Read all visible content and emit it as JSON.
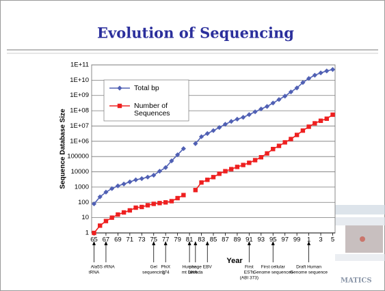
{
  "chart_data": {
    "type": "line",
    "title": "Evolution of Sequencing",
    "ylabel": "Sequence Database Size",
    "xlabel": "Year",
    "watermark": "MATICS",
    "log_y": true,
    "grid": true,
    "legend": "upper left",
    "xlim": [
      1964.6,
      2005.4
    ],
    "ylim": [
      1,
      100000000000
    ],
    "xticks": [
      {
        "value": 1965,
        "label": "65"
      },
      {
        "value": 1967,
        "label": "67"
      },
      {
        "value": 1969,
        "label": "69"
      },
      {
        "value": 1971,
        "label": "71"
      },
      {
        "value": 1973,
        "label": "73"
      },
      {
        "value": 1975,
        "label": "75"
      },
      {
        "value": 1977,
        "label": "77"
      },
      {
        "value": 1979,
        "label": "79"
      },
      {
        "value": 1981,
        "label": "81"
      },
      {
        "value": 1983,
        "label": "83"
      },
      {
        "value": 1985,
        "label": "85"
      },
      {
        "value": 1987,
        "label": "87"
      },
      {
        "value": 1989,
        "label": "89"
      },
      {
        "value": 1991,
        "label": "91"
      },
      {
        "value": 1993,
        "label": "93"
      },
      {
        "value": 1995,
        "label": "95"
      },
      {
        "value": 1997,
        "label": "97"
      },
      {
        "value": 1999,
        "label": "99"
      },
      {
        "value": 2001,
        "label": "1"
      },
      {
        "value": 2003,
        "label": "3"
      },
      {
        "value": 2005,
        "label": "5"
      }
    ],
    "yticks": [
      1,
      10,
      100,
      1000,
      10000,
      100000,
      {
        "value": 1000000,
        "label": "1E+06"
      },
      {
        "value": 10000000,
        "label": "1E+07"
      },
      {
        "value": 100000000,
        "label": "1E+08"
      },
      {
        "value": 1000000000,
        "label": "1E+09"
      },
      {
        "value": 10000000000,
        "label": "1E+10"
      },
      {
        "value": 100000000000,
        "label": "1E+11"
      }
    ],
    "x": [
      1965,
      1966,
      1967,
      1968,
      1969,
      1970,
      1971,
      1972,
      1973,
      1974,
      1975,
      1976,
      1977,
      1978,
      1979,
      1980,
      1981,
      1982,
      1983,
      1984,
      1985,
      1986,
      1987,
      1988,
      1989,
      1990,
      1991,
      1992,
      1993,
      1994,
      1995,
      1996,
      1997,
      1998,
      1999,
      2000,
      2001,
      2002,
      2003,
      2004,
      2005
    ],
    "series": [
      {
        "name": "Total bp",
        "color": "#5060b4",
        "marker": "diamond",
        "values": [
          80,
          230,
          470,
          800,
          1200,
          1600,
          2200,
          3000,
          3600,
          4500,
          6000,
          11000,
          19000,
          52000,
          130000,
          330000,
          null,
          700000,
          2000000,
          3200000,
          5000000,
          8000000,
          13000000,
          20000000,
          28000000,
          37000000,
          56000000,
          85000000,
          130000000,
          190000000,
          320000000,
          540000000,
          900000000,
          1700000000,
          3100000000,
          7000000000,
          13000000000,
          21000000000,
          30000000000,
          40000000000,
          50000000000
        ]
      },
      {
        "name": "Number of Sequences",
        "color": "#ee2020",
        "marker": "square",
        "values": [
          1,
          3,
          6,
          10,
          16,
          22,
          30,
          45,
          50,
          65,
          80,
          90,
          100,
          120,
          190,
          300,
          null,
          640,
          2000,
          3000,
          4500,
          7500,
          11000,
          15000,
          21000,
          28000,
          39000,
          58000,
          90000,
          160000,
          310000,
          500000,
          850000,
          1400000,
          2600000,
          5000000,
          9000000,
          15000000,
          22000000,
          30000000,
          55000000
        ]
      }
    ],
    "annotations": [
      {
        "x": 1965,
        "lines": [
          "Ala",
          "tRNA"
        ]
      },
      {
        "x": 1967,
        "lines": [
          "5S rRNA"
        ]
      },
      {
        "x": 1975,
        "lines": [
          "Gel",
          "sequencing"
        ]
      },
      {
        "x": 1977,
        "lines": [
          "PhiX",
          "174"
        ]
      },
      {
        "x": 1981,
        "lines": [
          "Human",
          "mt DNA"
        ]
      },
      {
        "x": 1982,
        "lines": [
          "phage",
          "lambda"
        ]
      },
      {
        "x": 1984,
        "lines": [
          "EBV"
        ]
      },
      {
        "x": 1991,
        "lines": [
          "First",
          "ESTs",
          "(ABI 373)"
        ]
      },
      {
        "x": 1995,
        "lines": [
          "First cellular",
          "Genome sequences"
        ]
      },
      {
        "x": 2001,
        "lines": [
          "Draft Human",
          "Genome sequence"
        ]
      }
    ]
  }
}
